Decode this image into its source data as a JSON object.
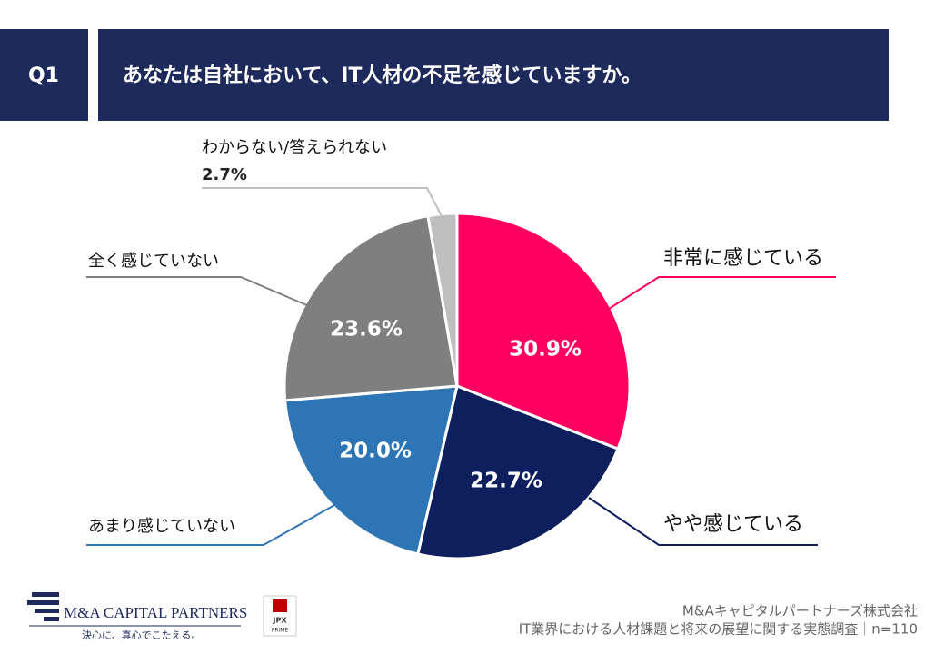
{
  "header": {
    "label": "Q1",
    "title": "あなたは自社において、IT人材の不足を感じていますか。"
  },
  "chart_data": {
    "type": "pie",
    "categories": [
      "非常に感じている",
      "やや感じている",
      "あまり感じていない",
      "全く感じていない",
      "わからない/答えられない"
    ],
    "values": [
      30.9,
      22.7,
      20,
      23.6,
      2.7
    ],
    "value_labels": [
      "30.9%",
      "22.7%",
      "20.0%",
      "23.6%",
      "2.7%"
    ],
    "colors": [
      "#ff0060",
      "#0d1f5c",
      "#2e75b6",
      "#7f7f7f",
      "#bfbfbf"
    ]
  },
  "footer": {
    "company": "M&Aキャピタルパートナーズ株式会社",
    "survey": "IT業界における人材課題と将来の展望に関する実態調査｜n=110"
  },
  "logo": {
    "name": "M&A CAPITAL PARTNERS",
    "tagline": "決心に、真心でこたえる。",
    "badge": [
      "JPX",
      "PRIME"
    ]
  }
}
